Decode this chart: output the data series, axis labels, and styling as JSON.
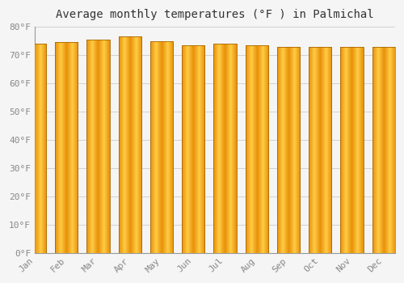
{
  "title": "Average monthly temperatures (°F ) in Palmichal",
  "months": [
    "Jan",
    "Feb",
    "Mar",
    "Apr",
    "May",
    "Jun",
    "Jul",
    "Aug",
    "Sep",
    "Oct",
    "Nov",
    "Dec"
  ],
  "values": [
    74,
    74.5,
    75.5,
    76.5,
    75,
    73.5,
    74,
    73.5,
    73,
    73,
    73,
    73
  ],
  "bar_color_center": "#FFCC44",
  "bar_color_edge": "#E8900A",
  "background_color": "#F5F5F5",
  "grid_color": "#CCCCCC",
  "ylim": [
    0,
    80
  ],
  "yticks": [
    0,
    10,
    20,
    30,
    40,
    50,
    60,
    70,
    80
  ],
  "title_fontsize": 10,
  "tick_fontsize": 8,
  "tick_color": "#888888"
}
